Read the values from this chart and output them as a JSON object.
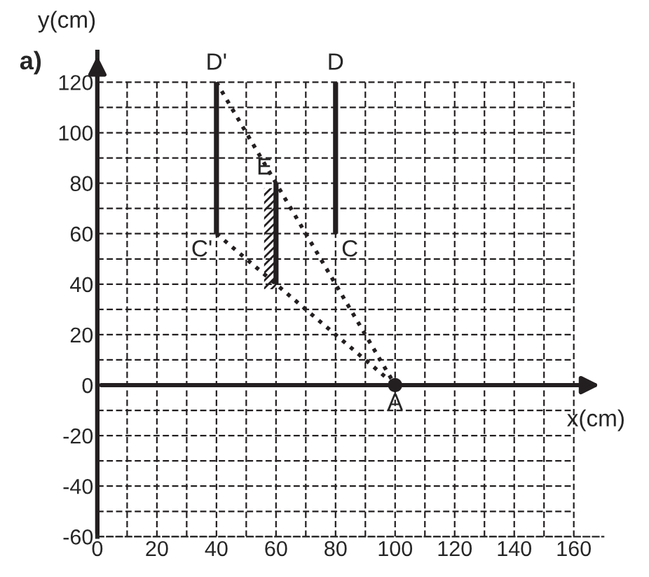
{
  "chart_data": {
    "type": "line",
    "xlabel": "x(cm)",
    "ylabel": "y(cm)",
    "xlim": [
      0,
      170
    ],
    "ylim": [
      -60,
      132
    ],
    "xticks": [
      0,
      {
        "value": 10,
        "label": null
      },
      20,
      {
        "value": 30,
        "label": null
      },
      40,
      {
        "value": 50,
        "label": null
      },
      60,
      {
        "value": 70,
        "label": null
      },
      80,
      {
        "value": 90,
        "label": null
      },
      100,
      {
        "value": 110,
        "label": null
      },
      120,
      {
        "value": 130,
        "label": null
      },
      140,
      {
        "value": 150,
        "label": null
      },
      160
    ],
    "yticks": [
      -60,
      {
        "value": -50,
        "label": null
      },
      -40,
      {
        "value": -30,
        "label": null
      },
      -20,
      {
        "value": -10,
        "label": null
      },
      0,
      {
        "value": 10,
        "label": null
      },
      20,
      {
        "value": 30,
        "label": null
      },
      40,
      {
        "value": 50,
        "label": null
      },
      60,
      {
        "value": 70,
        "label": null
      },
      80,
      {
        "value": 90,
        "label": null
      },
      100,
      {
        "value": 110,
        "label": null
      },
      120
    ],
    "grid": true,
    "series": [
      {
        "color": "#231f20",
        "line_style": "solid",
        "x": [
          80,
          80
        ],
        "values": [
          60,
          120
        ]
      },
      {
        "color": "#231f20",
        "line_style": "solid",
        "x": [
          40,
          40
        ],
        "values": [
          60,
          120
        ]
      },
      {
        "color": "#231f20",
        "line_style": "solid",
        "x": [
          60,
          60
        ],
        "values": [
          40,
          80
        ]
      },
      {
        "color": "#231f20",
        "line_style": "dotted",
        "x": [
          40,
          100
        ],
        "values": [
          120,
          0
        ]
      },
      {
        "color": "#231f20",
        "line_style": "dotted",
        "x": [
          40,
          100
        ],
        "values": [
          60,
          0
        ]
      },
      {
        "type": "scatter",
        "color": "#231f20",
        "marker": "circle",
        "x": [
          100
        ],
        "values": [
          0
        ]
      }
    ],
    "annotations": [
      "a)",
      {
        "text": "D'",
        "x": 40,
        "y": 120
      },
      {
        "text": "D",
        "x": 80,
        "y": 120
      },
      {
        "text": "C'",
        "x": 40,
        "y": 60
      },
      {
        "text": "C",
        "x": 80,
        "y": 60
      },
      {
        "text": "E",
        "x": 60,
        "y": 80
      },
      {
        "text": "A",
        "x": 100,
        "y": 0
      }
    ]
  }
}
